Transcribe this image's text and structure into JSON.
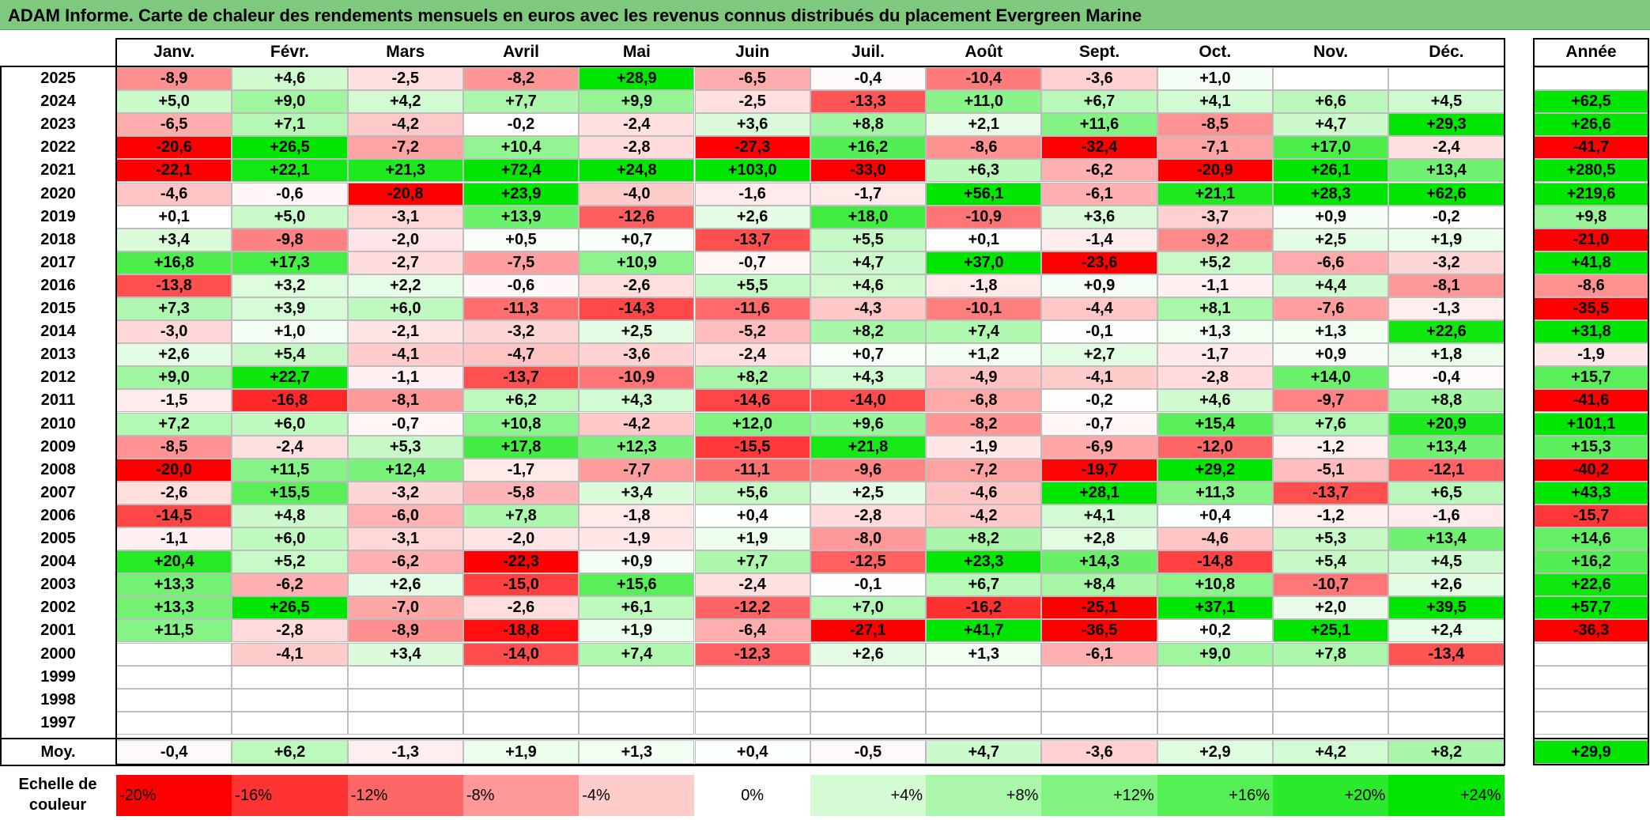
{
  "title": "ADAM Informe. Carte de chaleur des rendements mensuels en euros avec les revenus connus distribués du placement Evergreen Marine",
  "chart_data": {
    "type": "heatmap",
    "title": "ADAM Informe. Carte de chaleur des rendements mensuels en euros avec les revenus connus distribués du placement Evergreen Marine",
    "months": [
      "Janv.",
      "Févr.",
      "Mars",
      "Avril",
      "Mai",
      "Juin",
      "Juil.",
      "Août",
      "Sept.",
      "Oct.",
      "Nov.",
      "Déc."
    ],
    "year_header": "Année",
    "rows": [
      {
        "year": "2025",
        "values": [
          "-8,9",
          "+4,6",
          "-2,5",
          "-8,2",
          "+28,9",
          "-6,5",
          "-0,4",
          "-10,4",
          "-3,6",
          "+1,0",
          "",
          ""
        ],
        "annual": ""
      },
      {
        "year": "2024",
        "values": [
          "+5,0",
          "+9,0",
          "+4,2",
          "+7,7",
          "+9,9",
          "-2,5",
          "-13,3",
          "+11,0",
          "+6,7",
          "+4,1",
          "+6,6",
          "+4,5"
        ],
        "annual": "+62,5"
      },
      {
        "year": "2023",
        "values": [
          "-6,5",
          "+7,1",
          "-4,2",
          "-0,2",
          "-2,4",
          "+3,6",
          "+8,8",
          "+2,1",
          "+11,6",
          "-8,5",
          "+4,7",
          "+29,3"
        ],
        "annual": "+26,6"
      },
      {
        "year": "2022",
        "values": [
          "-20,6",
          "+26,5",
          "-7,2",
          "+10,4",
          "-2,8",
          "-27,3",
          "+16,2",
          "-8,6",
          "-32,4",
          "-7,1",
          "+17,0",
          "-2,4"
        ],
        "annual": "-41,7"
      },
      {
        "year": "2021",
        "values": [
          "-22,1",
          "+22,1",
          "+21,3",
          "+72,4",
          "+24,8",
          "+103,0",
          "-33,0",
          "+6,3",
          "-6,2",
          "-20,9",
          "+26,1",
          "+13,4"
        ],
        "annual": "+280,5"
      },
      {
        "year": "2020",
        "values": [
          "-4,6",
          "-0,6",
          "-20,8",
          "+23,9",
          "-4,0",
          "-1,6",
          "-1,7",
          "+56,1",
          "-6,1",
          "+21,1",
          "+28,3",
          "+62,6"
        ],
        "annual": "+219,6"
      },
      {
        "year": "2019",
        "values": [
          "+0,1",
          "+5,0",
          "-3,1",
          "+13,9",
          "-12,6",
          "+2,6",
          "+18,0",
          "-10,9",
          "+3,6",
          "-3,7",
          "+0,9",
          "-0,2"
        ],
        "annual": "+9,8"
      },
      {
        "year": "2018",
        "values": [
          "+3,4",
          "-9,8",
          "-2,0",
          "+0,5",
          "+0,7",
          "-13,7",
          "+5,5",
          "+0,1",
          "-1,4",
          "-9,2",
          "+2,5",
          "+1,9"
        ],
        "annual": "-21,0"
      },
      {
        "year": "2017",
        "values": [
          "+16,8",
          "+17,3",
          "-2,7",
          "-7,5",
          "+10,9",
          "-0,7",
          "+4,7",
          "+37,0",
          "-23,6",
          "+5,2",
          "-6,6",
          "-3,2"
        ],
        "annual": "+41,8"
      },
      {
        "year": "2016",
        "values": [
          "-13,8",
          "+3,2",
          "+2,2",
          "-0,6",
          "-2,6",
          "+5,5",
          "+4,6",
          "-1,8",
          "+0,9",
          "-1,1",
          "+4,4",
          "-8,1"
        ],
        "annual": "-8,6"
      },
      {
        "year": "2015",
        "values": [
          "+7,3",
          "+3,9",
          "+6,0",
          "-11,3",
          "-14,3",
          "-11,6",
          "-4,3",
          "-10,1",
          "-4,4",
          "+8,1",
          "-7,6",
          "-1,3"
        ],
        "annual": "-35,5"
      },
      {
        "year": "2014",
        "values": [
          "-3,0",
          "+1,0",
          "-2,1",
          "-3,2",
          "+2,5",
          "-5,2",
          "+8,2",
          "+7,4",
          "-0,1",
          "+1,3",
          "+1,3",
          "+22,6"
        ],
        "annual": "+31,8"
      },
      {
        "year": "2013",
        "values": [
          "+2,6",
          "+5,4",
          "-4,1",
          "-4,7",
          "-3,6",
          "-2,4",
          "+0,7",
          "+1,2",
          "+2,7",
          "-1,7",
          "+0,9",
          "+1,8"
        ],
        "annual": "-1,9"
      },
      {
        "year": "2012",
        "values": [
          "+9,0",
          "+22,7",
          "-1,1",
          "-13,7",
          "-10,9",
          "+8,2",
          "+4,3",
          "-4,9",
          "-4,1",
          "-2,8",
          "+14,0",
          "-0,4"
        ],
        "annual": "+15,7"
      },
      {
        "year": "2011",
        "values": [
          "-1,5",
          "-16,8",
          "-8,1",
          "+6,2",
          "+4,3",
          "-14,6",
          "-14,0",
          "-6,8",
          "-0,2",
          "+4,6",
          "-9,7",
          "+8,8"
        ],
        "annual": "-41,6"
      },
      {
        "year": "2010",
        "values": [
          "+7,2",
          "+6,0",
          "-0,7",
          "+10,8",
          "-4,2",
          "+12,0",
          "+9,6",
          "-8,2",
          "-0,7",
          "+15,4",
          "+7,6",
          "+20,9"
        ],
        "annual": "+101,1"
      },
      {
        "year": "2009",
        "values": [
          "-8,5",
          "-2,4",
          "+5,3",
          "+17,8",
          "+12,3",
          "-15,5",
          "+21,8",
          "-1,9",
          "-6,9",
          "-12,0",
          "-1,2",
          "+13,4"
        ],
        "annual": "+15,3"
      },
      {
        "year": "2008",
        "values": [
          "-20,0",
          "+11,5",
          "+12,4",
          "-1,7",
          "-7,7",
          "-11,1",
          "-9,6",
          "-7,2",
          "-19,7",
          "+29,2",
          "-5,1",
          "-12,1"
        ],
        "annual": "-40,2"
      },
      {
        "year": "2007",
        "values": [
          "-2,6",
          "+15,5",
          "-3,2",
          "-5,8",
          "+3,4",
          "+5,6",
          "+2,5",
          "-4,6",
          "+28,1",
          "+11,3",
          "-13,7",
          "+6,5"
        ],
        "annual": "+43,3"
      },
      {
        "year": "2006",
        "values": [
          "-14,5",
          "+4,8",
          "-6,0",
          "+7,8",
          "-1,8",
          "+0,4",
          "-2,8",
          "-4,2",
          "+4,1",
          "+0,4",
          "-1,2",
          "-1,6"
        ],
        "annual": "-15,7"
      },
      {
        "year": "2005",
        "values": [
          "-1,1",
          "+6,0",
          "-3,1",
          "-2,0",
          "-1,9",
          "+1,9",
          "-8,0",
          "+8,2",
          "+2,8",
          "-4,6",
          "+5,3",
          "+13,4"
        ],
        "annual": "+14,6"
      },
      {
        "year": "2004",
        "values": [
          "+20,4",
          "+5,2",
          "-6,2",
          "-22,3",
          "+0,9",
          "+7,7",
          "-12,5",
          "+23,3",
          "+14,3",
          "-14,8",
          "+5,4",
          "+4,5"
        ],
        "annual": "+16,2"
      },
      {
        "year": "2003",
        "values": [
          "+13,3",
          "-6,2",
          "+2,6",
          "-15,0",
          "+15,6",
          "-2,4",
          "-0,1",
          "+6,7",
          "+8,4",
          "+10,8",
          "-10,7",
          "+2,6"
        ],
        "annual": "+22,6"
      },
      {
        "year": "2002",
        "values": [
          "+13,3",
          "+26,5",
          "-7,0",
          "-2,6",
          "+6,1",
          "-12,2",
          "+7,0",
          "-16,2",
          "-25,1",
          "+37,1",
          "+2,0",
          "+39,5"
        ],
        "annual": "+57,7"
      },
      {
        "year": "2001",
        "values": [
          "+11,5",
          "-2,8",
          "-8,9",
          "-18,8",
          "+1,9",
          "-6,4",
          "-27,1",
          "+41,7",
          "-36,5",
          "+0,2",
          "+25,1",
          "+2,4"
        ],
        "annual": "-36,3"
      },
      {
        "year": "2000",
        "values": [
          "",
          "-4,1",
          "+3,4",
          "-14,0",
          "+7,4",
          "-12,3",
          "+2,6",
          "+1,3",
          "-6,1",
          "+9,0",
          "+7,8",
          "-13,4"
        ],
        "annual": ""
      },
      {
        "year": "1999",
        "values": [
          "",
          "",
          "",
          "",
          "",
          "",
          "",
          "",
          "",
          "",
          "",
          ""
        ],
        "annual": ""
      },
      {
        "year": "1998",
        "values": [
          "",
          "",
          "",
          "",
          "",
          "",
          "",
          "",
          "",
          "",
          "",
          ""
        ],
        "annual": ""
      },
      {
        "year": "1997",
        "values": [
          "",
          "",
          "",
          "",
          "",
          "",
          "",
          "",
          "",
          "",
          "",
          ""
        ],
        "annual": ""
      }
    ],
    "average": {
      "label": "Moy.",
      "values": [
        "-0,4",
        "+6,2",
        "-1,3",
        "+1,9",
        "+1,3",
        "+0,4",
        "-0,5",
        "+4,7",
        "-3,6",
        "+2,9",
        "+4,2",
        "+8,2"
      ],
      "annual": "+29,9"
    },
    "scale": {
      "label_line1": "Echelle de",
      "label_line2": "couleur",
      "items": [
        {
          "label": "-20%",
          "value": -20,
          "align": "left"
        },
        {
          "label": "-16%",
          "value": -16,
          "align": "left"
        },
        {
          "label": "-12%",
          "value": -12,
          "align": "left"
        },
        {
          "label": "-8%",
          "value": -8,
          "align": "left"
        },
        {
          "label": "-4%",
          "value": -4,
          "align": "left"
        },
        {
          "label": "0%",
          "value": 0,
          "align": "center"
        },
        {
          "label": "+4%",
          "value": 4,
          "align": "right"
        },
        {
          "label": "+8%",
          "value": 8,
          "align": "right"
        },
        {
          "label": "+12%",
          "value": 12,
          "align": "right"
        },
        {
          "label": "+16%",
          "value": 16,
          "align": "right"
        },
        {
          "label": "+20%",
          "value": 20,
          "align": "right"
        },
        {
          "label": "+24%",
          "value": 24,
          "align": "right"
        }
      ]
    },
    "colors": {
      "negative": "#ff0000",
      "positive": "#00e600",
      "neutral": "#ffffff",
      "title_bg": "#7ec97e"
    }
  }
}
